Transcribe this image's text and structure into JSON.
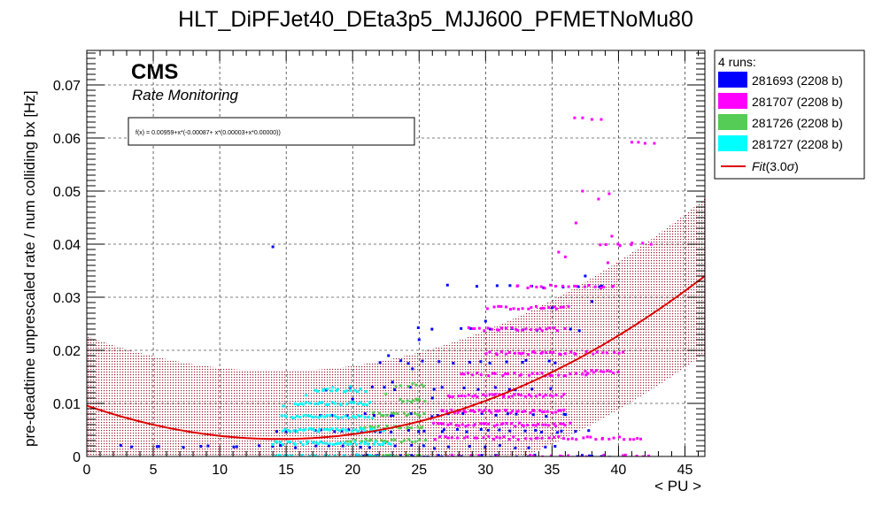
{
  "chart_data": {
    "type": "scatter",
    "title": "HLT_DiPFJet40_DEta3p5_MJJ600_PFMETNoMu80",
    "xlabel": "< PU >",
    "ylabel": "pre-deadtime unprescaled rate / num colliding bx [Hz]",
    "xlim": [
      0,
      46.5
    ],
    "ylim": [
      0,
      0.0765
    ],
    "x_ticks": [
      "0",
      "5",
      "10",
      "15",
      "20",
      "25",
      "30",
      "35",
      "40",
      "45"
    ],
    "y_ticks": [
      "0",
      "0.01",
      "0.02",
      "0.03",
      "0.04",
      "0.05",
      "0.06",
      "0.07"
    ],
    "grid": true,
    "legend_position": "top-right, outside plot",
    "cms_label": "CMS",
    "cms_sublabel": "Rate Monitoring",
    "fit_formula": "f(x) = 0.00959+x*(-0.00087+ x*(0.00003+x*0.00000))",
    "fit": {
      "type": "cubic",
      "coefficients": [
        0.00959,
        -0.00087,
        3e-05,
        0.0
      ],
      "band_sigma": 3.0
    },
    "legend_header": "4 runs:",
    "series": [
      {
        "name": "281693 (2208 b)",
        "color": "#0000ff",
        "bands": [
          {
            "x0": 19.5,
            "x1": 39.5,
            "level": 0.0,
            "n": 40
          },
          {
            "x0": 2.0,
            "x1": 36.0,
            "level": 0.0018,
            "n": 30
          },
          {
            "x0": 14.0,
            "x1": 38.0,
            "level": 0.0048,
            "n": 30
          },
          {
            "x0": 17.0,
            "x1": 37.0,
            "level": 0.0078,
            "n": 20
          },
          {
            "x0": 19.5,
            "x1": 35.5,
            "level": 0.0128,
            "n": 14
          },
          {
            "x0": 22.0,
            "x1": 36.0,
            "level": 0.0178,
            "n": 14
          },
          {
            "x0": 24.0,
            "x1": 38.0,
            "level": 0.024,
            "n": 10
          },
          {
            "x0": 27.0,
            "x1": 40.0,
            "level": 0.032,
            "n": 10
          }
        ],
        "points": [
          [
            14.0,
            0.0395
          ],
          [
            22.7,
            0.019
          ],
          [
            25.0,
            0.022
          ],
          [
            30.0,
            0.0255
          ],
          [
            35.0,
            0.028
          ],
          [
            37.5,
            0.034
          ],
          [
            38.0,
            0.0292
          ],
          [
            26.0,
            0.011
          ],
          [
            23.0,
            0.014
          ],
          [
            24.5,
            0.0165
          ],
          [
            20.0,
            0.0108
          ],
          [
            18.0,
            0.0125
          ]
        ]
      },
      {
        "name": "281707 (2208 b)",
        "color": "#ff00ff",
        "bands": [
          {
            "x0": 25.5,
            "x1": 42.5,
            "level": 0.0,
            "n": 40
          },
          {
            "x0": 26.0,
            "x1": 42.0,
            "level": 0.0035,
            "n": 45
          },
          {
            "x0": 26.0,
            "x1": 36.5,
            "level": 0.006,
            "n": 40
          },
          {
            "x0": 26.5,
            "x1": 36.0,
            "level": 0.0085,
            "n": 40
          },
          {
            "x0": 27.0,
            "x1": 36.0,
            "level": 0.0115,
            "n": 35
          },
          {
            "x0": 28.0,
            "x1": 38.0,
            "level": 0.0155,
            "n": 30
          },
          {
            "x0": 30.0,
            "x1": 37.0,
            "level": 0.0195,
            "n": 25
          },
          {
            "x0": 28.5,
            "x1": 36.0,
            "level": 0.024,
            "n": 25
          },
          {
            "x0": 30.0,
            "x1": 36.5,
            "level": 0.028,
            "n": 20
          },
          {
            "x0": 32.0,
            "x1": 40.0,
            "level": 0.032,
            "n": 20
          },
          {
            "x0": 37.5,
            "x1": 40.0,
            "level": 0.016,
            "n": 10
          },
          {
            "x0": 37.5,
            "x1": 40.5,
            "level": 0.0195,
            "n": 8
          },
          {
            "x0": 38.5,
            "x1": 42.5,
            "level": 0.04,
            "n": 8
          }
        ],
        "points": [
          [
            36.7,
            0.0638
          ],
          [
            37.3,
            0.0638
          ],
          [
            38.0,
            0.0635
          ],
          [
            38.7,
            0.0635
          ],
          [
            41.0,
            0.0592
          ],
          [
            41.5,
            0.0592
          ],
          [
            42.0,
            0.059
          ],
          [
            42.7,
            0.059
          ],
          [
            37.3,
            0.05
          ],
          [
            38.5,
            0.0485
          ],
          [
            39.3,
            0.0495
          ],
          [
            36.8,
            0.044
          ],
          [
            35.5,
            0.0385
          ],
          [
            36.0,
            0.0376
          ],
          [
            39.2,
            0.0365
          ],
          [
            39.5,
            0.0415
          ]
        ]
      },
      {
        "name": "281726 (2208 b)",
        "color": "#55cc55",
        "bands": [
          {
            "x0": 20.5,
            "x1": 25.5,
            "level": 0.0,
            "n": 20
          },
          {
            "x0": 19.5,
            "x1": 25.5,
            "level": 0.003,
            "n": 20
          },
          {
            "x0": 20.5,
            "x1": 25.5,
            "level": 0.0055,
            "n": 18
          },
          {
            "x0": 21.5,
            "x1": 25.5,
            "level": 0.008,
            "n": 15
          },
          {
            "x0": 23.5,
            "x1": 25.5,
            "level": 0.0105,
            "n": 8
          },
          {
            "x0": 23.0,
            "x1": 25.5,
            "level": 0.0135,
            "n": 6
          }
        ],
        "points": [
          [
            24.8,
            0.0108
          ],
          [
            25.2,
            0.0135
          ],
          [
            22.5,
            0.0118
          ]
        ]
      },
      {
        "name": "281727 (2208 b)",
        "color": "#00ffff",
        "bands": [
          {
            "x0": 13.8,
            "x1": 23.5,
            "level": 0.0,
            "n": 40
          },
          {
            "x0": 13.8,
            "x1": 23.0,
            "level": 0.0025,
            "n": 40
          },
          {
            "x0": 14.5,
            "x1": 22.5,
            "level": 0.005,
            "n": 35
          },
          {
            "x0": 14.5,
            "x1": 21.5,
            "level": 0.0075,
            "n": 30
          },
          {
            "x0": 15.5,
            "x1": 21.5,
            "level": 0.01,
            "n": 25
          },
          {
            "x0": 17.0,
            "x1": 21.0,
            "level": 0.0125,
            "n": 15
          }
        ],
        "points": [
          [
            14.8,
            0.0095
          ],
          [
            16.5,
            0.0115
          ],
          [
            18.5,
            0.013
          ],
          [
            19.8,
            0.0132
          ]
        ]
      }
    ],
    "fit_legend_label": "Fit(3.0σ)",
    "fit_color": "#dd0000"
  }
}
